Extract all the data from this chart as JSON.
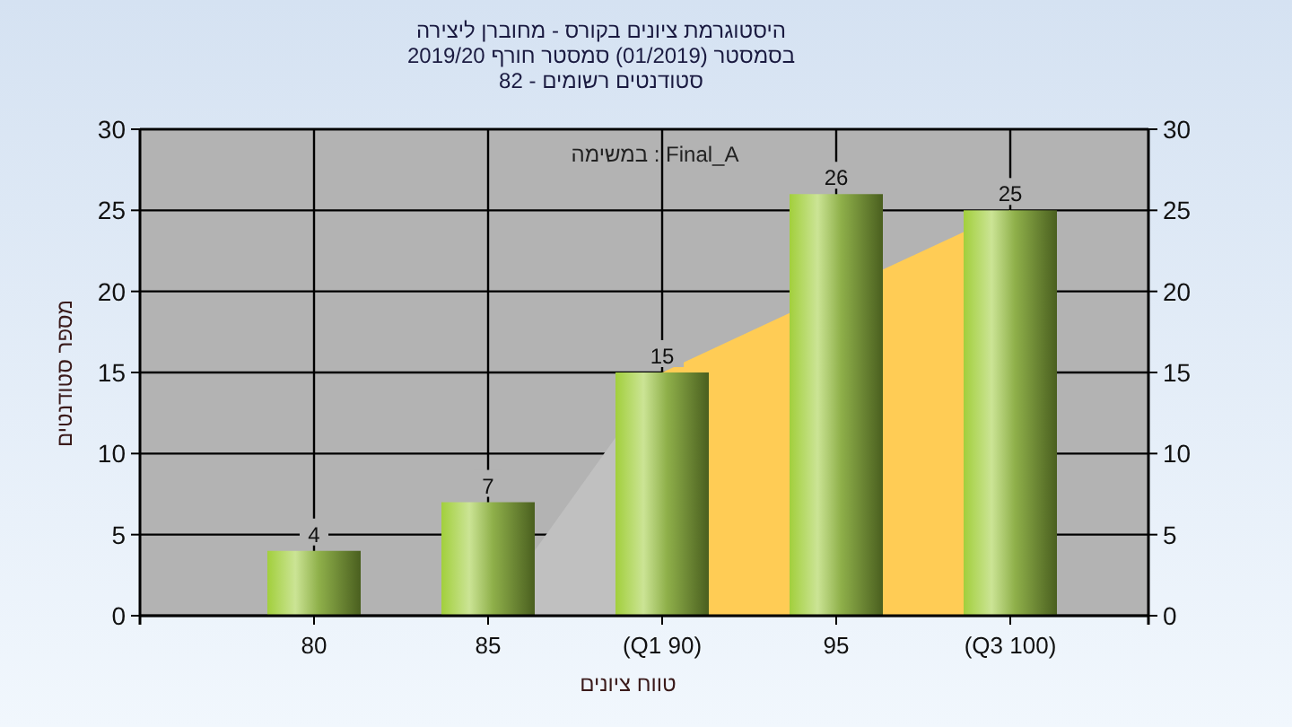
{
  "chart_data": {
    "type": "bar",
    "title": "היסטוגרמת ציונים בקורס - מחוברן ליצירה",
    "subtitle": "בסמסטר  (01/2019)  סמסטר חורף 2019/20\nסטודנטים רשומים - 82",
    "xlabel": "טווח ציונים",
    "ylabel": "מספר סטודנטים",
    "annotations": [
      "במשימה : Final_A"
    ],
    "categories": [
      "80",
      "85",
      "(Q1 90)",
      "95",
      "(Q3 100)"
    ],
    "series": [
      {
        "type": "area",
        "color": "#c0c0c0",
        "values": [
          null,
          0,
          15,
          null,
          null
        ]
      },
      {
        "type": "area",
        "color": "#ffcc55",
        "values": [
          null,
          null,
          15,
          null,
          25
        ]
      },
      {
        "color": "#8fb04a",
        "values": [
          4,
          7,
          15,
          26,
          25
        ],
        "value_labels": [
          "4",
          "7",
          "15",
          "26",
          "25"
        ]
      }
    ],
    "ylim": [
      0,
      30
    ],
    "yticks": [
      0,
      5,
      10,
      15,
      20,
      25,
      30
    ],
    "y2lim": [
      0,
      30
    ],
    "y2ticks": [
      0,
      5,
      10,
      15,
      20,
      25,
      30
    ],
    "grid": true
  }
}
